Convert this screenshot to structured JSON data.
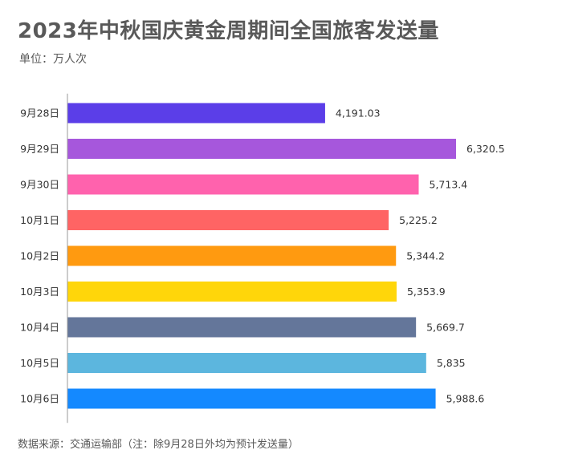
{
  "title": "2023年中秋国庆黄金周期间全国旅客发送量",
  "subtitle": "单位：万人次",
  "source": "数据来源：交通运输部（注：除9月28日外均为预计发送量）",
  "chart_data": {
    "type": "bar",
    "orientation": "horizontal",
    "categories": [
      "9月28日",
      "9月29日",
      "9月30日",
      "10月1日",
      "10月2日",
      "10月3日",
      "10月4日",
      "10月5日",
      "10月6日"
    ],
    "values": [
      4191.03,
      6320.5,
      5713.4,
      5225.2,
      5344.2,
      5353.9,
      5669.7,
      5835,
      5988.6
    ],
    "value_labels": [
      "4,191.03",
      "6,320.5",
      "5,713.4",
      "5,225.2",
      "5,344.2",
      "5,353.9",
      "5,669.7",
      "5,835",
      "5,988.6"
    ],
    "colors": [
      "#5b3ee8",
      "#a657dc",
      "#ff62ad",
      "#ff6464",
      "#ff9a10",
      "#ffd60a",
      "#64769a",
      "#5cb6de",
      "#1489ff"
    ],
    "xlim": [
      0,
      6320.5
    ],
    "grid": false,
    "legend": "none"
  }
}
